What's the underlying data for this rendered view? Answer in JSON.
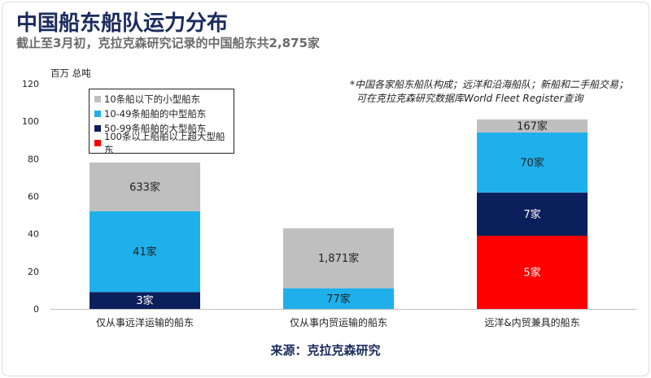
{
  "header": {
    "title": "中国船东船队运力分布",
    "subtitle": "截止至3月初，克拉克森研究记录的中国船东共2,875家"
  },
  "note": {
    "line1": "*中国各家船东船队构成；远洋和沿海船队；新船和二手船交易；",
    "line2": "可在克拉克森研究数据库World Fleet Register查询"
  },
  "source": "来源：克拉克森研究",
  "colors": {
    "small": "#bfbfbf",
    "medium": "#1fb0ec",
    "large": "#0b1f5c",
    "xlarge": "#ff0000",
    "title": "#1a2b5c"
  },
  "chart_data": {
    "type": "bar",
    "stacked": true,
    "ylabel": "百万 总吨",
    "ylim": [
      0,
      120
    ],
    "yticks": [
      0,
      20,
      40,
      60,
      80,
      100,
      120
    ],
    "grid": false,
    "legend_position": "top-left",
    "categories": [
      "仅从事远洋运输的船东",
      "仅从事内贸运输的船东",
      "远洋&内贸兼具的船东"
    ],
    "series": [
      {
        "name": "100条以上船舶以上超大型船东",
        "color": "#ff0000",
        "values": [
          0,
          0,
          39
        ],
        "labels": [
          "",
          "",
          "5家"
        ]
      },
      {
        "name": "50-99条船舶的大型船东",
        "color": "#0b1f5c",
        "values": [
          9,
          0,
          23
        ],
        "labels": [
          "3家",
          "",
          "7家"
        ]
      },
      {
        "name": "10-49条船舶的中型船东",
        "color": "#1fb0ec",
        "values": [
          43,
          11,
          32
        ],
        "labels": [
          "41家",
          "77家",
          "70家"
        ]
      },
      {
        "name": "10条船以下的小型船东",
        "color": "#bfbfbf",
        "values": [
          26,
          32,
          7
        ],
        "labels": [
          "633家",
          "1,871家",
          "167家"
        ]
      }
    ]
  }
}
